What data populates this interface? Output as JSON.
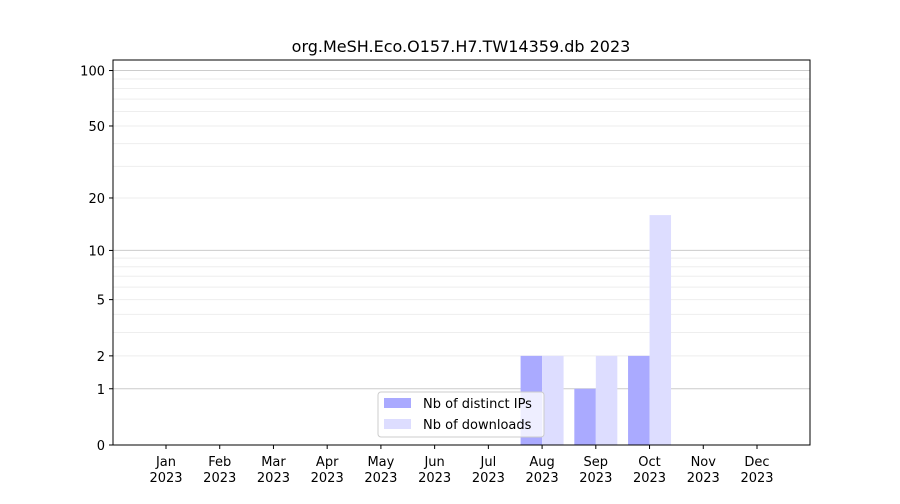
{
  "chart_data": {
    "type": "bar",
    "title": "org.MeSH.Eco.O157.H7.TW14359.db 2023",
    "xlabel": "",
    "ylabel": "",
    "yscale": "log(1+y)",
    "ylim": [
      0,
      114
    ],
    "yticks": [
      0,
      1,
      2,
      5,
      10,
      20,
      50,
      100
    ],
    "grid": true,
    "legend_position": "bottom-center",
    "categories": [
      "Jan\n2023",
      "Feb\n2023",
      "Mar\n2023",
      "Apr\n2023",
      "May\n2023",
      "Jun\n2023",
      "Jul\n2023",
      "Aug\n2023",
      "Sep\n2023",
      "Oct\n2023",
      "Nov\n2023",
      "Dec\n2023"
    ],
    "series": [
      {
        "name": "Nb of distinct IPs",
        "color": "#aaaaff",
        "values": [
          0,
          0,
          0,
          0,
          0,
          0,
          0,
          2,
          1,
          2,
          0,
          0
        ]
      },
      {
        "name": "Nb of downloads",
        "color": "#ddddff",
        "values": [
          0,
          0,
          0,
          0,
          0,
          0,
          0,
          2,
          2,
          16,
          0,
          0
        ]
      }
    ]
  }
}
